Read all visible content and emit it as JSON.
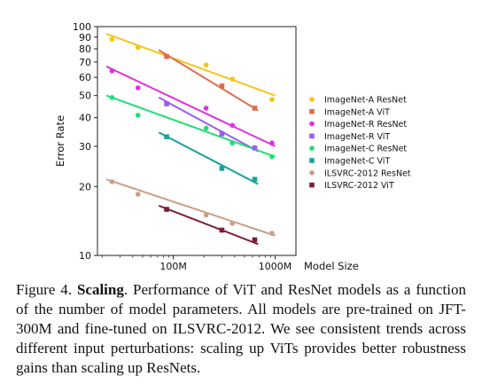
{
  "chart_data": {
    "type": "scatter",
    "xscale": "log",
    "yscale": "log",
    "xlim": [
      18,
      1600
    ],
    "ylim": [
      10,
      100
    ],
    "xlabel": "Model Size",
    "ylabel": "Error Rate",
    "x_unit": "millions of parameters",
    "x_ticks": [
      {
        "value": 100,
        "label": "100M"
      },
      {
        "value": 1000,
        "label": "1000M"
      }
    ],
    "y_ticks": [
      {
        "value": 100,
        "label": "100"
      },
      {
        "value": 90,
        "label": "90"
      },
      {
        "value": 80,
        "label": "80"
      },
      {
        "value": 70,
        "label": "70"
      },
      {
        "value": 60,
        "label": "60"
      },
      {
        "value": 50,
        "label": "50"
      },
      {
        "value": 40,
        "label": "40"
      },
      {
        "value": 30,
        "label": "30"
      },
      {
        "value": 20,
        "label": "20"
      },
      {
        "value": 10,
        "label": "10"
      }
    ],
    "legend_position": "right",
    "grid": false,
    "series": [
      {
        "name": "ImageNet-A ResNet",
        "color": "#f5c518",
        "marker": "circle",
        "points": [
          [
            25,
            88
          ],
          [
            45,
            81
          ],
          [
            210,
            68
          ],
          [
            380,
            59
          ],
          [
            930,
            48
          ]
        ],
        "fit": [
          [
            22,
            93
          ],
          [
            1000,
            50
          ]
        ]
      },
      {
        "name": "ImageNet-A ViT",
        "color": "#e06c4c",
        "marker": "square",
        "points": [
          [
            86,
            74
          ],
          [
            300,
            55
          ],
          [
            630,
            44
          ]
        ],
        "fit": [
          [
            72,
            79
          ],
          [
            680,
            43
          ]
        ]
      },
      {
        "name": "ImageNet-R ResNet",
        "color": "#e02ee0",
        "marker": "circle",
        "points": [
          [
            25,
            64
          ],
          [
            45,
            54
          ],
          [
            210,
            44
          ],
          [
            380,
            37
          ],
          [
            930,
            31
          ]
        ],
        "fit": [
          [
            22,
            67
          ],
          [
            1000,
            30
          ]
        ]
      },
      {
        "name": "ImageNet-R ViT",
        "color": "#9a5cf0",
        "marker": "square",
        "points": [
          [
            86,
            46
          ],
          [
            300,
            34
          ],
          [
            630,
            29.5
          ]
        ],
        "fit": [
          [
            72,
            49
          ],
          [
            680,
            28.5
          ]
        ]
      },
      {
        "name": "ImageNet-C ResNet",
        "color": "#22dd77",
        "marker": "circle",
        "points": [
          [
            25,
            49
          ],
          [
            45,
            41
          ],
          [
            210,
            36
          ],
          [
            380,
            31
          ],
          [
            930,
            27
          ]
        ],
        "fit": [
          [
            22,
            50
          ],
          [
            1000,
            27
          ]
        ]
      },
      {
        "name": "ImageNet-C ViT",
        "color": "#19a49a",
        "marker": "square",
        "points": [
          [
            86,
            33
          ],
          [
            300,
            24
          ],
          [
            630,
            21.5
          ]
        ],
        "fit": [
          [
            72,
            34.5
          ],
          [
            680,
            20.5
          ]
        ]
      },
      {
        "name": "ILSVRC-2012 ResNet",
        "color": "#c9a088",
        "marker": "circle",
        "points": [
          [
            25,
            21
          ],
          [
            45,
            18.5
          ],
          [
            210,
            15
          ],
          [
            380,
            13.8
          ],
          [
            930,
            12.5
          ]
        ],
        "fit": [
          [
            22,
            21.5
          ],
          [
            1000,
            12.2
          ]
        ]
      },
      {
        "name": "ILSVRC-2012 ViT",
        "color": "#7a1f3d",
        "marker": "square",
        "points": [
          [
            86,
            15.9
          ],
          [
            300,
            12.9
          ],
          [
            630,
            11.7
          ]
        ],
        "fit": [
          [
            72,
            16.5
          ],
          [
            680,
            11.2
          ]
        ]
      }
    ]
  },
  "caption": {
    "label": "Figure 4. ",
    "bold": "Scaling",
    "text": ". Performance of ViT and ResNet models as a function of the number of model parameters. All models are pre-trained on JFT-300M and fine-tuned on ILSVRC-2012. We see consistent trends across different input perturbations: scaling up ViTs provides better robustness gains than scaling up ResNets."
  }
}
